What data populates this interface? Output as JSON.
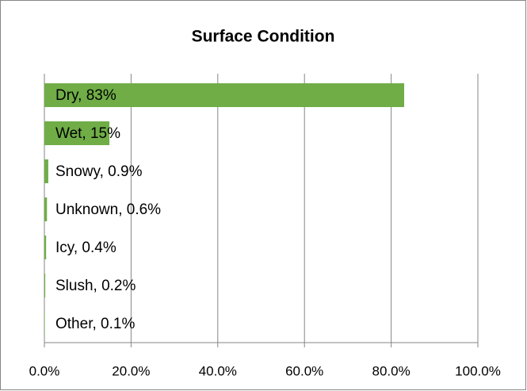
{
  "chart_data": {
    "type": "bar",
    "orientation": "horizontal",
    "title": "Surface Condition",
    "values": [
      83,
      15,
      0.9,
      0.6,
      0.4,
      0.2,
      0.1
    ],
    "value_labels": [
      "Dry, 83%",
      "Wet, 15%",
      "Snowy, 0.9%",
      "Unknown, 0.6%",
      "Icy, 0.4%",
      "Slush, 0.2%",
      "Other, 0.1%"
    ],
    "color": "#70ad47",
    "xlim": [
      0,
      100
    ],
    "xticks": [
      {
        "value": 0,
        "label": "0.0%"
      },
      {
        "value": 20,
        "label": "20.0%"
      },
      {
        "value": 40,
        "label": "40.0%"
      },
      {
        "value": 60,
        "label": "60.0%"
      },
      {
        "value": 80,
        "label": "80.0%"
      },
      {
        "value": 100,
        "label": "100.0%"
      }
    ],
    "grid": true
  }
}
